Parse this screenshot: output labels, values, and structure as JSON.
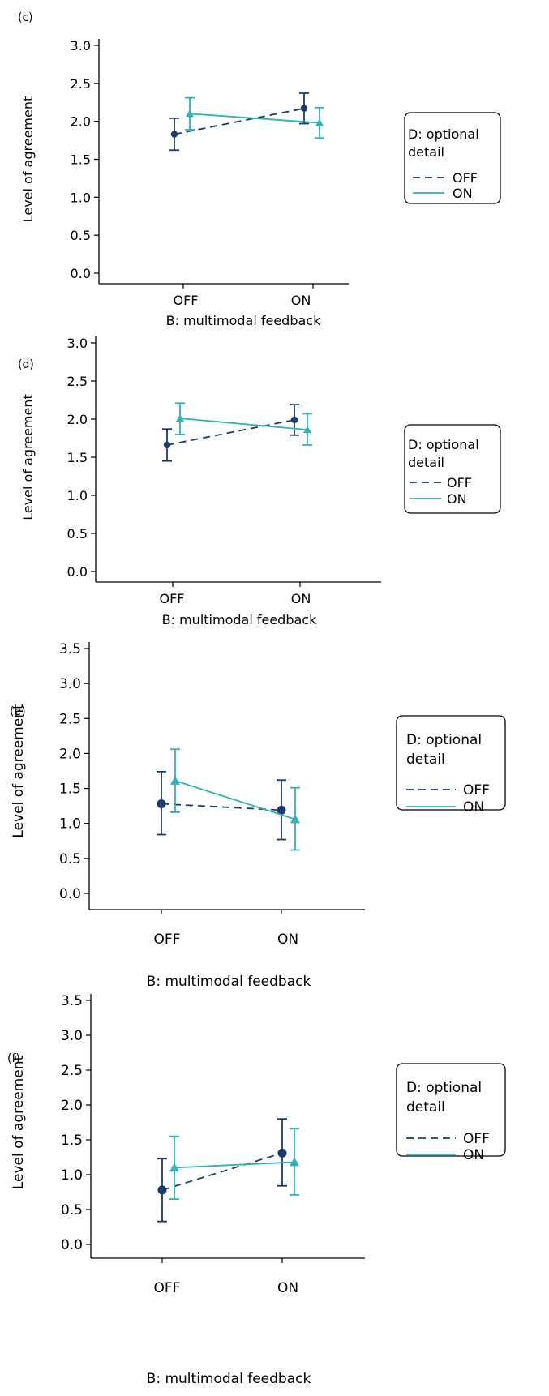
{
  "colors": {
    "off": "#1b3a6b",
    "on": "#2fb3b3",
    "axis": "#000000"
  },
  "chart_data": [
    {
      "panel_label": "(c)",
      "type": "line",
      "xlabel": "B: multimodal feedback",
      "ylabel": "Level of agreement",
      "categories": [
        "OFF",
        "ON"
      ],
      "ylim": [
        0,
        3.0
      ],
      "yticks": [
        "0.0",
        "0.5",
        "1.0",
        "1.5",
        "2.0",
        "2.5",
        "3.0"
      ],
      "legend": {
        "title": "D: optional detail",
        "placement": "right",
        "entries": [
          "OFF",
          "ON"
        ]
      },
      "series": [
        {
          "name": "OFF",
          "style": "dashed",
          "marker": "circle",
          "values": [
            1.83,
            2.17
          ],
          "lower": [
            1.62,
            1.97
          ],
          "upper": [
            2.04,
            2.37
          ]
        },
        {
          "name": "ON",
          "style": "solid",
          "marker": "triangle",
          "values": [
            2.1,
            1.98
          ],
          "lower": [
            1.89,
            1.78
          ],
          "upper": [
            2.31,
            2.18
          ]
        }
      ]
    },
    {
      "panel_label": "(d)",
      "type": "line",
      "xlabel": "B: multimodal feedback",
      "ylabel": "Level of agreement",
      "categories": [
        "OFF",
        "ON"
      ],
      "ylim": [
        0,
        3.0
      ],
      "yticks": [
        "0.0",
        "0.5",
        "1.0",
        "1.5",
        "2.0",
        "2.5",
        "3.0"
      ],
      "legend": {
        "title": "D: optional detail",
        "placement": "right",
        "entries": [
          "OFF",
          "ON"
        ]
      },
      "series": [
        {
          "name": "OFF",
          "style": "dashed",
          "marker": "circle",
          "values": [
            1.66,
            1.99
          ],
          "lower": [
            1.45,
            1.79
          ],
          "upper": [
            1.87,
            2.19
          ]
        },
        {
          "name": "ON",
          "style": "solid",
          "marker": "triangle",
          "values": [
            2.01,
            1.86
          ],
          "lower": [
            1.8,
            1.66
          ],
          "upper": [
            2.21,
            2.07
          ]
        }
      ]
    },
    {
      "panel_label": "(e)",
      "type": "line",
      "xlabel": "B: multimodal feedback",
      "ylabel": "Level of agreement",
      "categories": [
        "OFF",
        "ON"
      ],
      "ylim": [
        0,
        3.5
      ],
      "yticks": [
        "0.0",
        "0.5",
        "1.0",
        "1.5",
        "2.0",
        "2.5",
        "3.0",
        "3.5"
      ],
      "legend": {
        "title": "D: optional detail",
        "placement": "right",
        "entries": [
          "OFF",
          "ON"
        ]
      },
      "series": [
        {
          "name": "OFF",
          "style": "dashed",
          "marker": "circle",
          "values": [
            1.28,
            1.19
          ],
          "lower": [
            0.84,
            0.77
          ],
          "upper": [
            1.74,
            1.62
          ]
        },
        {
          "name": "ON",
          "style": "solid",
          "marker": "triangle",
          "values": [
            1.61,
            1.06
          ],
          "lower": [
            1.16,
            0.62
          ],
          "upper": [
            2.06,
            1.51
          ]
        }
      ]
    },
    {
      "panel_label": "(f)",
      "type": "line",
      "xlabel": "B: multimodal feedback",
      "ylabel": "Level of agreement",
      "categories": [
        "OFF",
        "ON"
      ],
      "ylim": [
        0,
        3.5
      ],
      "yticks": [
        "0.0",
        "0.5",
        "1.0",
        "1.5",
        "2.0",
        "2.5",
        "3.0",
        "3.5"
      ],
      "legend": {
        "title": "D: optional detail",
        "placement": "right",
        "entries": [
          "OFF",
          "ON"
        ]
      },
      "series": [
        {
          "name": "OFF",
          "style": "dashed",
          "marker": "circle",
          "values": [
            0.78,
            1.31
          ],
          "lower": [
            0.33,
            0.84
          ],
          "upper": [
            1.23,
            1.8
          ]
        },
        {
          "name": "ON",
          "style": "solid",
          "marker": "triangle",
          "values": [
            1.1,
            1.18
          ],
          "lower": [
            0.65,
            0.71
          ],
          "upper": [
            1.55,
            1.66
          ]
        }
      ]
    }
  ]
}
